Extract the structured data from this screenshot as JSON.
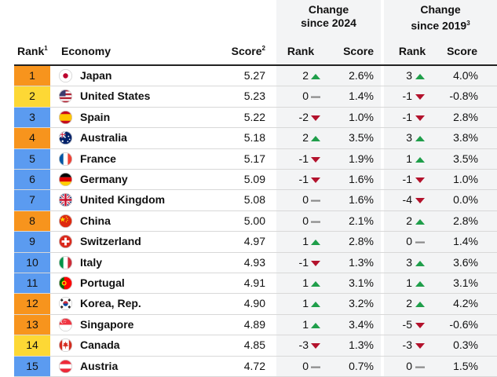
{
  "headers": {
    "rank": "Rank",
    "rank_sup": "1",
    "economy": "Economy",
    "score": "Score",
    "score_sup": "2",
    "group1_line1": "Change",
    "group1_line2": "since 2024",
    "group2_line1": "Change",
    "group2_line2": "since 2019",
    "group2_sup": "3",
    "sub_rank": "Rank",
    "sub_score": "Score"
  },
  "colors": {
    "orange": "#f7941d",
    "yellow": "#fdd835",
    "blue": "#5b9bf0",
    "up": "#1f9e4a",
    "down": "#b3122c",
    "flat": "#8a8a8a",
    "group_bg": "#f3f4f5"
  },
  "chart_data": {
    "type": "table",
    "rows": [
      {
        "rank": "1",
        "rank_color": "orange",
        "flag": "japan-flag-icon",
        "economy": "Japan",
        "score": "5.27",
        "r24": "2",
        "r24_dir": "up",
        "s24": "2.6%",
        "r19": "3",
        "r19_dir": "up",
        "s19": "4.0%"
      },
      {
        "rank": "2",
        "rank_color": "yellow",
        "flag": "united-states-flag-icon",
        "economy": "United States",
        "score": "5.23",
        "r24": "0",
        "r24_dir": "flat",
        "s24": "1.4%",
        "r19": "-1",
        "r19_dir": "down",
        "s19": "-0.8%"
      },
      {
        "rank": "3",
        "rank_color": "blue",
        "flag": "spain-flag-icon",
        "economy": "Spain",
        "score": "5.22",
        "r24": "-2",
        "r24_dir": "down",
        "s24": "1.0%",
        "r19": "-1",
        "r19_dir": "down",
        "s19": "2.8%"
      },
      {
        "rank": "4",
        "rank_color": "orange",
        "flag": "australia-flag-icon",
        "economy": "Australia",
        "score": "5.18",
        "r24": "2",
        "r24_dir": "up",
        "s24": "3.5%",
        "r19": "3",
        "r19_dir": "up",
        "s19": "3.8%"
      },
      {
        "rank": "5",
        "rank_color": "blue",
        "flag": "france-flag-icon",
        "economy": "France",
        "score": "5.17",
        "r24": "-1",
        "r24_dir": "down",
        "s24": "1.9%",
        "r19": "1",
        "r19_dir": "up",
        "s19": "3.5%"
      },
      {
        "rank": "6",
        "rank_color": "blue",
        "flag": "germany-flag-icon",
        "economy": "Germany",
        "score": "5.09",
        "r24": "-1",
        "r24_dir": "down",
        "s24": "1.6%",
        "r19": "-1",
        "r19_dir": "down",
        "s19": "1.0%"
      },
      {
        "rank": "7",
        "rank_color": "blue",
        "flag": "united-kingdom-flag-icon",
        "economy": "United Kingdom",
        "score": "5.08",
        "r24": "0",
        "r24_dir": "flat",
        "s24": "1.6%",
        "r19": "-4",
        "r19_dir": "down",
        "s19": "0.0%"
      },
      {
        "rank": "8",
        "rank_color": "orange",
        "flag": "china-flag-icon",
        "economy": "China",
        "score": "5.00",
        "r24": "0",
        "r24_dir": "flat",
        "s24": "2.1%",
        "r19": "2",
        "r19_dir": "up",
        "s19": "2.8%"
      },
      {
        "rank": "9",
        "rank_color": "blue",
        "flag": "switzerland-flag-icon",
        "economy": "Switzerland",
        "score": "4.97",
        "r24": "1",
        "r24_dir": "up",
        "s24": "2.8%",
        "r19": "0",
        "r19_dir": "flat",
        "s19": "1.4%"
      },
      {
        "rank": "10",
        "rank_color": "blue",
        "flag": "italy-flag-icon",
        "economy": "Italy",
        "score": "4.93",
        "r24": "-1",
        "r24_dir": "down",
        "s24": "1.3%",
        "r19": "3",
        "r19_dir": "up",
        "s19": "3.6%"
      },
      {
        "rank": "11",
        "rank_color": "blue",
        "flag": "portugal-flag-icon",
        "economy": "Portugal",
        "score": "4.91",
        "r24": "1",
        "r24_dir": "up",
        "s24": "3.1%",
        "r19": "1",
        "r19_dir": "up",
        "s19": "3.1%"
      },
      {
        "rank": "12",
        "rank_color": "orange",
        "flag": "korea-flag-icon",
        "economy": "Korea, Rep.",
        "score": "4.90",
        "r24": "1",
        "r24_dir": "up",
        "s24": "3.2%",
        "r19": "2",
        "r19_dir": "up",
        "s19": "4.2%"
      },
      {
        "rank": "13",
        "rank_color": "orange",
        "flag": "singapore-flag-icon",
        "economy": "Singapore",
        "score": "4.89",
        "r24": "1",
        "r24_dir": "up",
        "s24": "3.4%",
        "r19": "-5",
        "r19_dir": "down",
        "s19": "-0.6%"
      },
      {
        "rank": "14",
        "rank_color": "yellow",
        "flag": "canada-flag-icon",
        "economy": "Canada",
        "score": "4.85",
        "r24": "-3",
        "r24_dir": "down",
        "s24": "1.3%",
        "r19": "-3",
        "r19_dir": "down",
        "s19": "0.3%"
      },
      {
        "rank": "15",
        "rank_color": "blue",
        "flag": "austria-flag-icon",
        "economy": "Austria",
        "score": "4.72",
        "r24": "0",
        "r24_dir": "flat",
        "s24": "0.7%",
        "r19": "0",
        "r19_dir": "flat",
        "s19": "1.5%"
      }
    ]
  }
}
